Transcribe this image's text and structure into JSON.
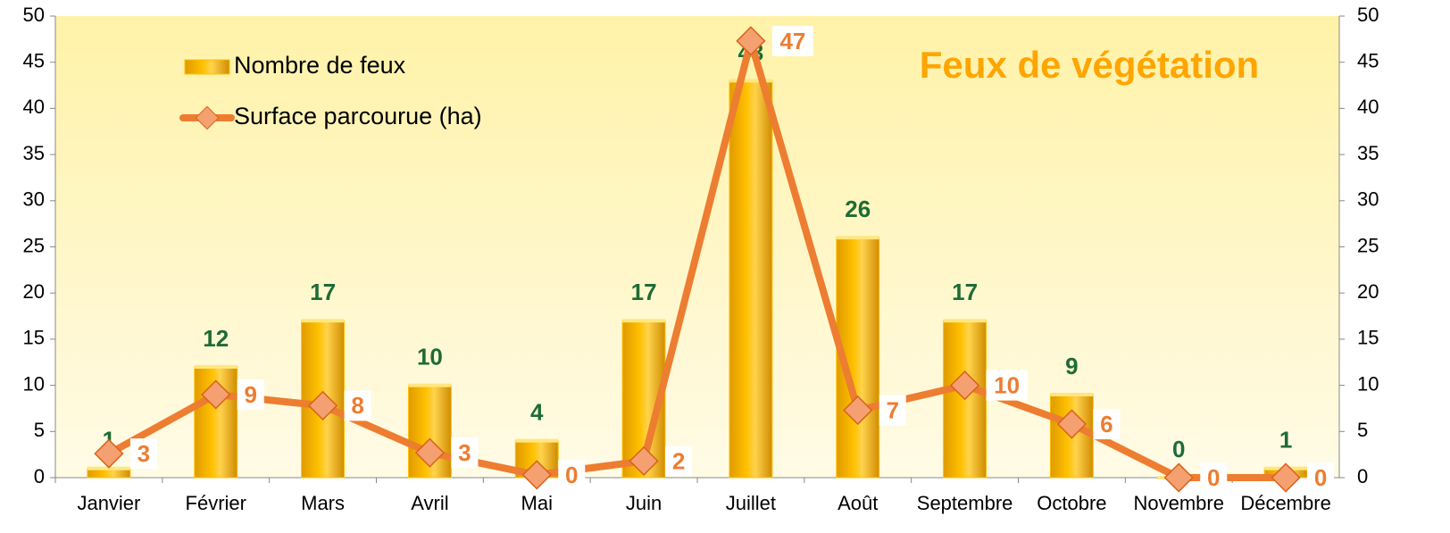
{
  "chart_data": {
    "type": "bar+line",
    "title": "Feux de végétation",
    "categories": [
      "Janvier",
      "Février",
      "Mars",
      "Avril",
      "Mai",
      "Juin",
      "Juillet",
      "Août",
      "Septembre",
      "Octobre",
      "Novembre",
      "Décembre"
    ],
    "series": [
      {
        "name": "Nombre de feux",
        "type": "bar",
        "color": "#ffc000",
        "label_color": "#1e6b35",
        "values": [
          1,
          12,
          17,
          10,
          4,
          17,
          43,
          26,
          17,
          9,
          0,
          1
        ]
      },
      {
        "name": "Surface parcourue (ha)",
        "type": "line",
        "axis": "y2",
        "color": "#ed7d31",
        "label_color": "#ed7d31",
        "values": [
          2.6,
          9,
          7.8,
          2.7,
          0.3,
          1.8,
          47.3,
          7.3,
          10,
          5.8,
          0,
          0
        ],
        "value_labels": [
          "3",
          "9",
          "8",
          "3",
          "0",
          "2",
          "47",
          "7",
          "10",
          "6",
          "0",
          "0"
        ]
      }
    ],
    "ylim": [
      0,
      50
    ],
    "yticks": [
      0,
      5,
      10,
      15,
      20,
      25,
      30,
      35,
      40,
      45,
      50
    ],
    "y2lim": [
      0,
      50
    ],
    "y2ticks": [
      0,
      5,
      10,
      15,
      20,
      25,
      30,
      35,
      40,
      45,
      50
    ]
  }
}
